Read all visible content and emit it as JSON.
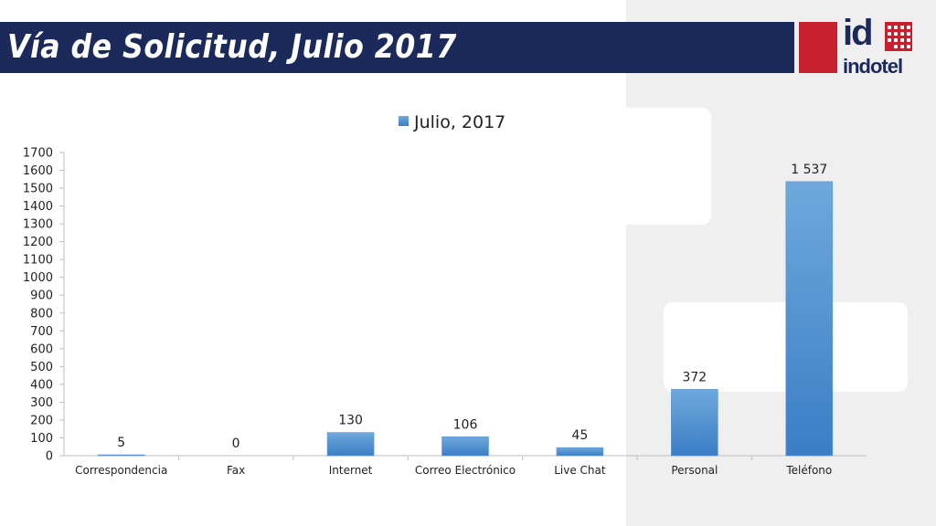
{
  "header": {
    "title": "Vía de Solicitud, Julio 2017",
    "brand_mark": "id",
    "brand_name": "indotel"
  },
  "colors": {
    "title_bar": "#1b2a5a",
    "brand_red": "#c8202f",
    "bar_top": "#6fa8dc",
    "bar_bottom": "#3a7ec6"
  },
  "chart_data": {
    "type": "bar",
    "categories": [
      "Correspondencia",
      "Fax",
      "Internet",
      "Correo Electrónico",
      "Live Chat",
      "Personal",
      "Teléfono"
    ],
    "series": [
      {
        "name": "Julio, 2017",
        "values": [
          5,
          0,
          130,
          106,
          45,
          372,
          1537
        ]
      }
    ],
    "data_labels": [
      "5",
      "0",
      "130",
      "106",
      "45",
      "372",
      "1 537"
    ],
    "ylim": [
      0,
      1700
    ],
    "yticks": [
      0,
      100,
      200,
      300,
      400,
      500,
      600,
      700,
      800,
      900,
      1000,
      1100,
      1200,
      1300,
      1400,
      1500,
      1600,
      1700
    ],
    "legend_position": "top",
    "grid": false,
    "title": "",
    "xlabel": "",
    "ylabel": ""
  }
}
